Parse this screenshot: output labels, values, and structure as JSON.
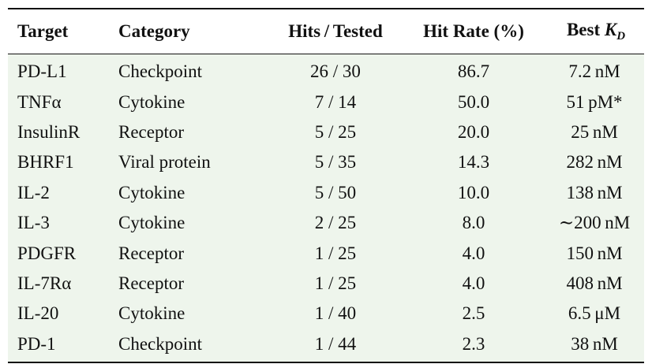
{
  "table": {
    "headers": [
      "Target",
      "Category",
      "Hits / Tested",
      "Hit Rate (%)",
      {
        "text": "Best",
        "symbol": "K",
        "subscript": "D"
      }
    ],
    "rows": [
      [
        "PD-L1",
        "Checkpoint",
        "26 / 30",
        "86.7",
        "7.2 nM"
      ],
      [
        "TNFα",
        "Cytokine",
        "7 / 14",
        "50.0",
        "51 pM*"
      ],
      [
        "InsulinR",
        "Receptor",
        "5 / 25",
        "20.0",
        "25 nM"
      ],
      [
        "BHRF1",
        "Viral protein",
        "5 / 35",
        "14.3",
        "282 nM"
      ],
      [
        "IL-2",
        "Cytokine",
        "5 / 50",
        "10.0",
        "138 nM"
      ],
      [
        "IL-3",
        "Cytokine",
        "2 / 25",
        "8.0",
        "∼200 nM"
      ],
      [
        "PDGFR",
        "Receptor",
        "1 / 25",
        "4.0",
        "150 nM"
      ],
      [
        "IL-7Rα",
        "Receptor",
        "1 / 25",
        "4.0",
        "408 nM"
      ],
      [
        "IL-20",
        "Cytokine",
        "1 / 40",
        "2.5",
        "6.5 μM"
      ],
      [
        "PD-1",
        "Checkpoint",
        "1 / 44",
        "2.3",
        "38 nM"
      ]
    ]
  }
}
